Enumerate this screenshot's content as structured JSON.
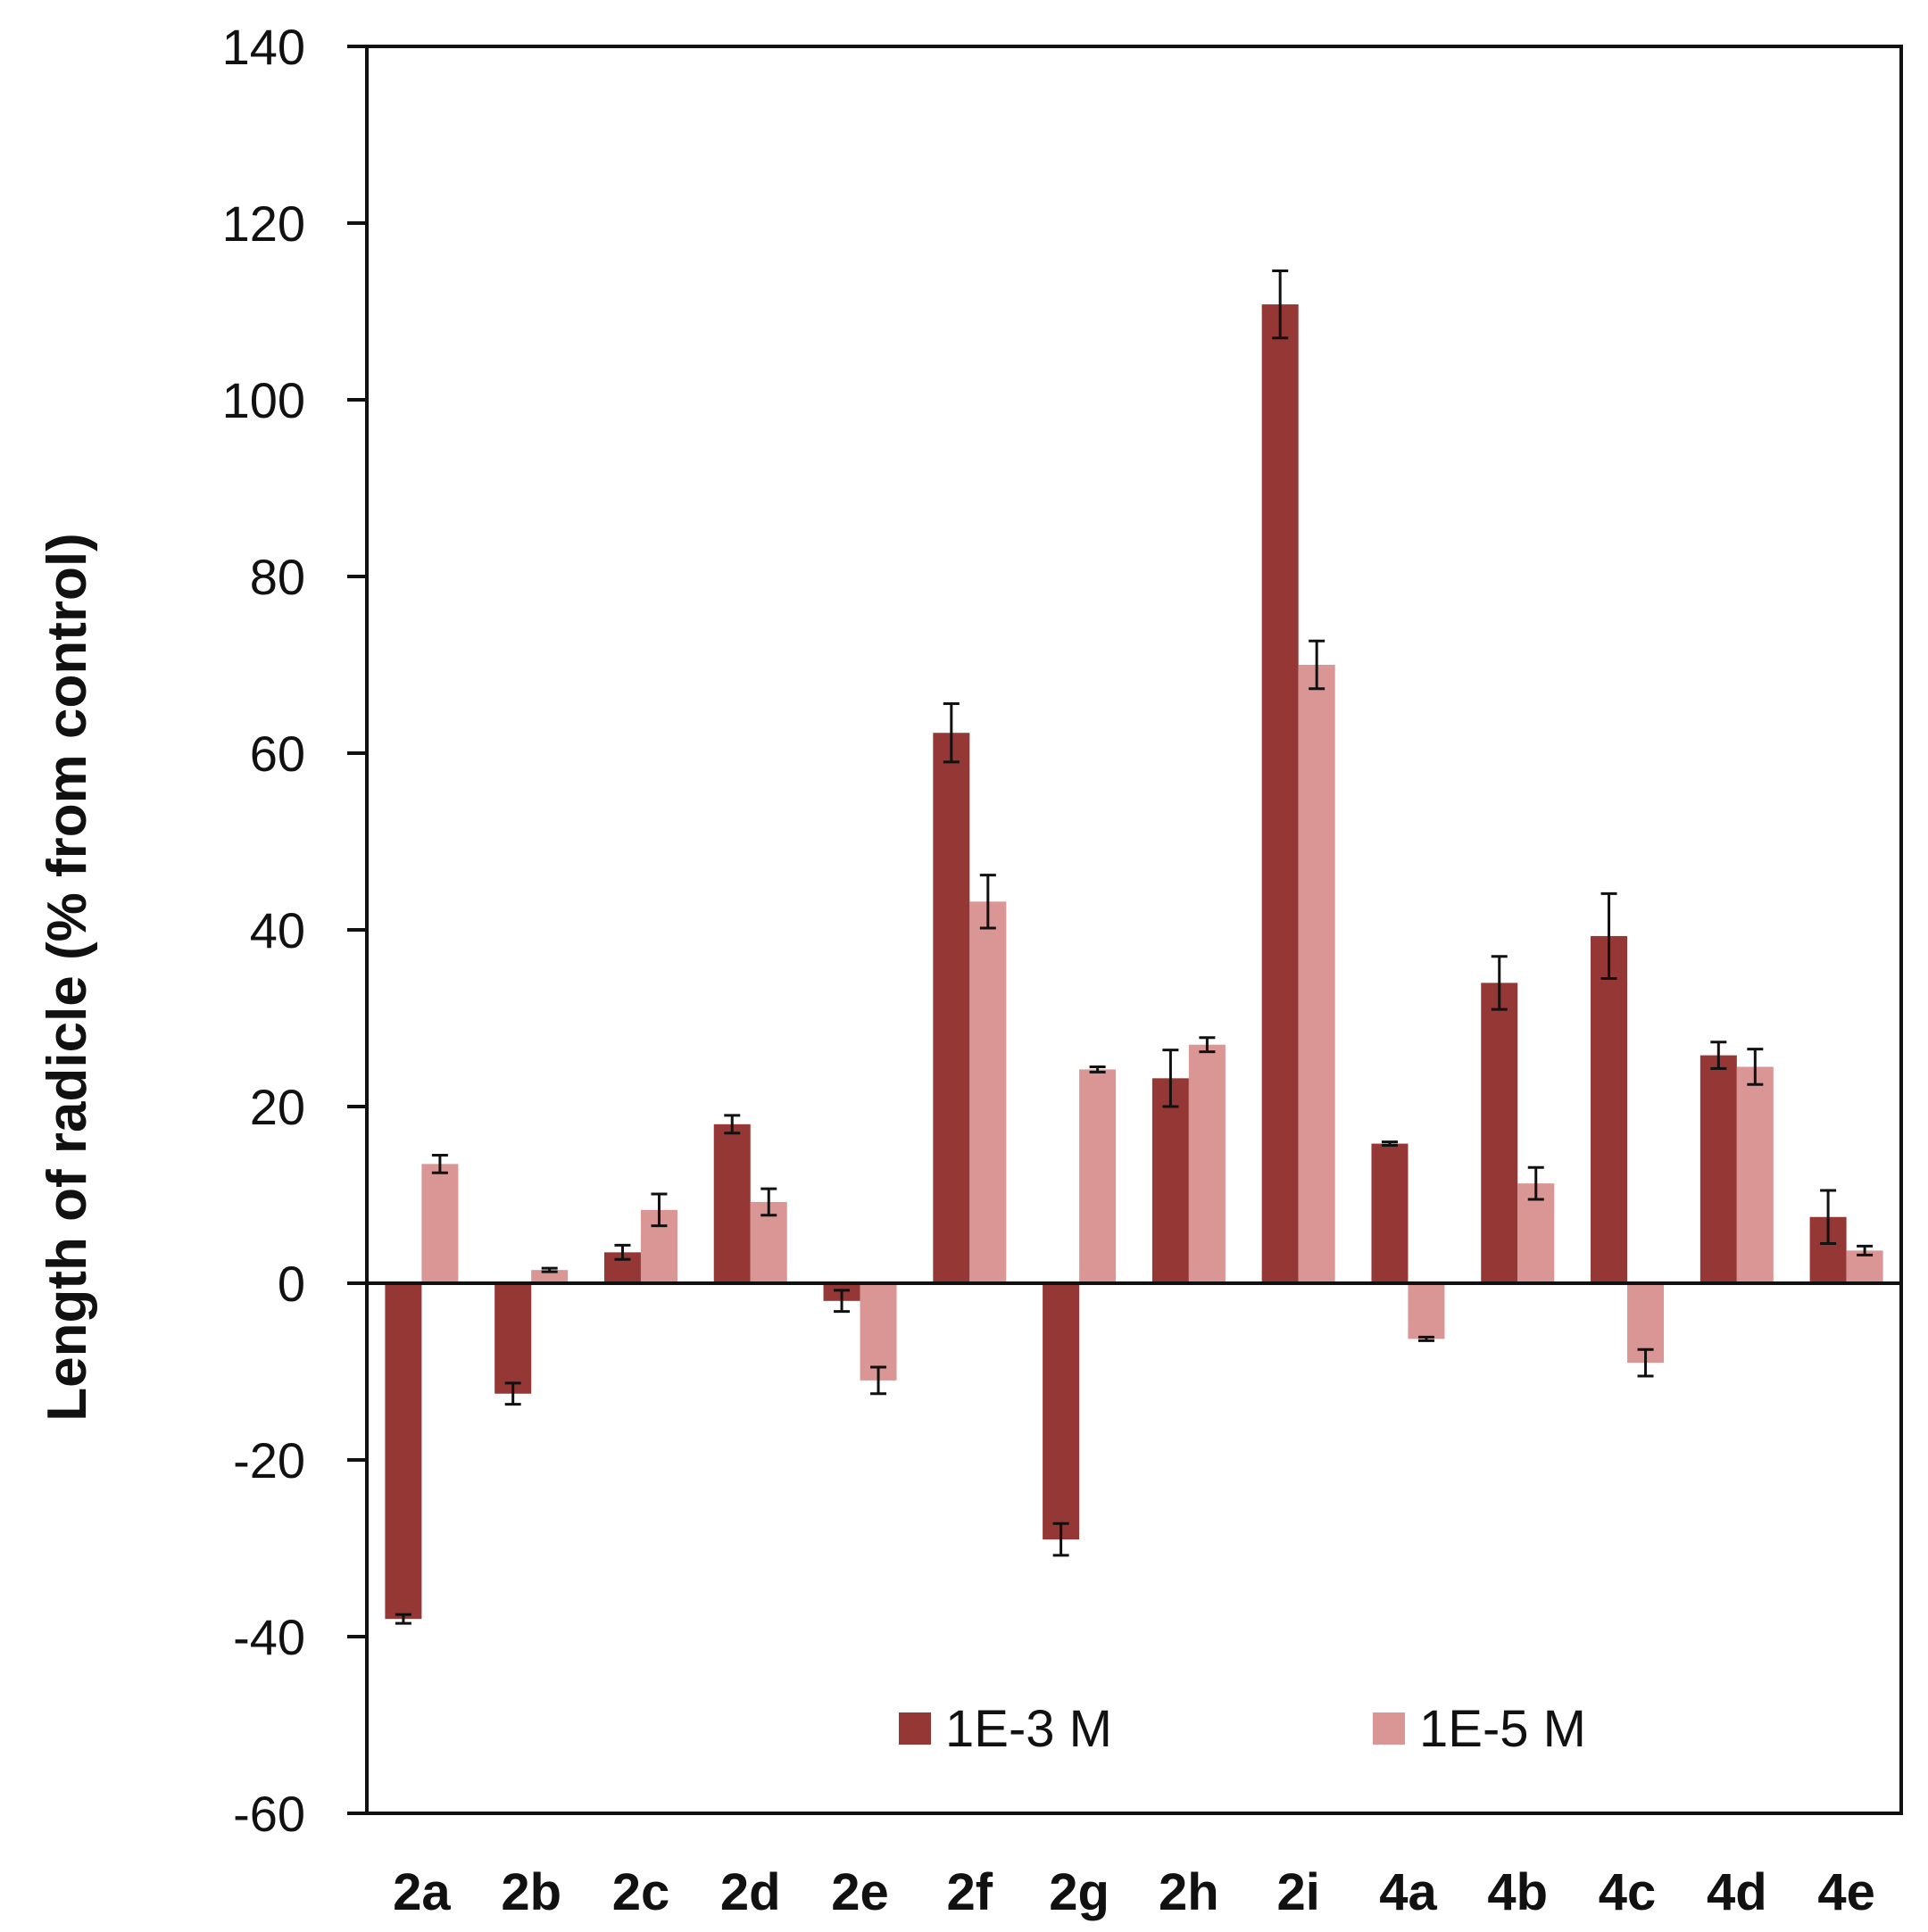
{
  "chart_data": {
    "type": "bar",
    "title": "",
    "xlabel": "",
    "ylabel": "Length of radicle (% from control)",
    "ylim": [
      -60,
      140
    ],
    "yticks": [
      140,
      120,
      100,
      80,
      60,
      40,
      20,
      0,
      -20,
      -40,
      -60
    ],
    "grid": false,
    "legend_position": "bottom-inside",
    "categories": [
      "2a",
      "2b",
      "2c",
      "2d",
      "2e",
      "2f",
      "2g",
      "2h",
      "2i",
      "4a",
      "4b",
      "4c",
      "4d",
      "4e"
    ],
    "series": [
      {
        "name": "1E-3 M",
        "color": "#953735",
        "values": [
          -38,
          -12.5,
          3.5,
          18,
          -2,
          62.3,
          -29,
          23.2,
          110.8,
          15.8,
          34,
          39.3,
          25.8,
          7.5
        ],
        "errors": [
          0.5,
          1.2,
          0.8,
          1,
          1.2,
          3.3,
          1.8,
          3.2,
          3.8,
          0.2,
          3,
          4.8,
          1.5,
          3
        ]
      },
      {
        "name": "1E-5 M",
        "color": "#da9694",
        "values": [
          13.5,
          1.5,
          8.3,
          9.2,
          -11,
          43.2,
          24.2,
          27,
          70,
          -6.3,
          11.3,
          -9,
          24.5,
          3.7
        ],
        "errors": [
          1,
          0.2,
          1.8,
          1.5,
          1.5,
          3,
          0.3,
          0.8,
          2.7,
          0.2,
          1.8,
          1.5,
          2,
          0.5
        ]
      }
    ]
  }
}
